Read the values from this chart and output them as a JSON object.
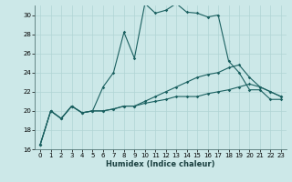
{
  "xlabel": "Humidex (Indice chaleur)",
  "bg_color": "#cce8e8",
  "grid_color": "#b0d4d4",
  "line_color": "#1a6060",
  "xlim": [
    -0.5,
    23.5
  ],
  "ylim": [
    16,
    31
  ],
  "yticks": [
    16,
    18,
    20,
    22,
    24,
    26,
    28,
    30
  ],
  "xticks": [
    0,
    1,
    2,
    3,
    4,
    5,
    6,
    7,
    8,
    9,
    10,
    11,
    12,
    13,
    14,
    15,
    16,
    17,
    18,
    19,
    20,
    21,
    22,
    23
  ],
  "series": [
    {
      "x": [
        0,
        1,
        2,
        3,
        4,
        5,
        6,
        7,
        8,
        9,
        10,
        11,
        12,
        13,
        14,
        15,
        16,
        17,
        18,
        19,
        20,
        21,
        22,
        23
      ],
      "y": [
        16.5,
        20.0,
        19.2,
        20.5,
        19.8,
        20.0,
        22.5,
        24.0,
        28.2,
        25.5,
        31.2,
        30.2,
        30.5,
        31.2,
        30.3,
        30.2,
        29.8,
        30.0,
        25.2,
        24.0,
        22.2,
        22.2,
        21.2,
        21.2
      ]
    },
    {
      "x": [
        0,
        1,
        2,
        3,
        4,
        5,
        6,
        7,
        8,
        9,
        10,
        11,
        12,
        13,
        14,
        15,
        16,
        17,
        18,
        19,
        20,
        21,
        22,
        23
      ],
      "y": [
        16.5,
        20.0,
        19.2,
        20.5,
        19.8,
        20.0,
        20.0,
        20.2,
        20.5,
        20.5,
        20.8,
        21.0,
        21.2,
        21.5,
        21.5,
        21.5,
        21.8,
        22.0,
        22.2,
        22.5,
        22.8,
        22.5,
        22.0,
        21.5
      ]
    },
    {
      "x": [
        0,
        1,
        2,
        3,
        4,
        5,
        6,
        7,
        8,
        9,
        10,
        11,
        12,
        13,
        14,
        15,
        16,
        17,
        18,
        19,
        20,
        21,
        22,
        23
      ],
      "y": [
        16.5,
        20.0,
        19.2,
        20.5,
        19.8,
        20.0,
        20.0,
        20.2,
        20.5,
        20.5,
        21.0,
        21.5,
        22.0,
        22.5,
        23.0,
        23.5,
        23.8,
        24.0,
        24.5,
        24.8,
        23.5,
        22.5,
        22.0,
        21.5
      ]
    }
  ]
}
